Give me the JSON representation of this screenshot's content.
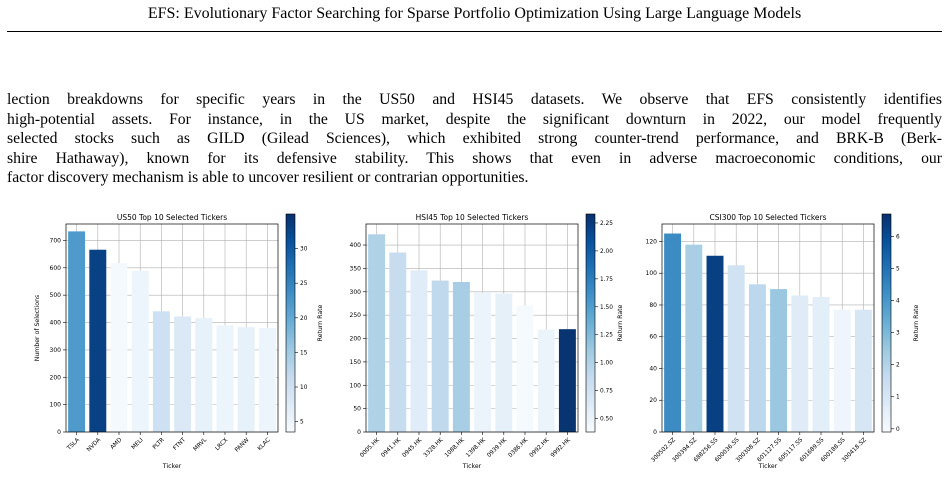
{
  "header": {
    "title": "EFS: Evolutionary Factor Searching for Sparse Portfolio Optimization Using Large Language Models"
  },
  "paragraph": {
    "lines": [
      "lection breakdowns for specific years in the US50 and HSI45 datasets. We observe that EFS consistently identifies",
      "high-potential assets. For instance, in the US market, despite the significant downturn in 2022, our model frequently",
      "selected stocks such as GILD (Gilead Sciences), which exhibited strong counter-trend performance, and BRK-B (Berk-",
      "shire Hathaway), known for its defensive stability. This shows that even in adverse macroeconomic conditions, our",
      "factor discovery mechanism is able to uncover resilient or contrarian opportunities."
    ]
  },
  "colors": {
    "cmap_light": "#f7fbff",
    "cmap_dark": "#08306b",
    "grid": "#b0b0b0"
  },
  "chart_data": [
    {
      "type": "bar",
      "title": "US50 Top 10 Selected Tickers",
      "xlabel": "Ticker",
      "ylabel": "Number of Selections",
      "colorbar_label": "Return Rate",
      "categories": [
        "TSLA",
        "NVDA",
        "AMD",
        "MELI",
        "PLTR",
        "FTNT",
        "MRVL",
        "LRCX",
        "PANW",
        "KLAC"
      ],
      "values": [
        733,
        666,
        617,
        589,
        441,
        422,
        416,
        390,
        383,
        380
      ],
      "color_values": [
        22,
        33,
        4,
        5,
        10,
        8,
        6,
        5,
        6,
        5
      ],
      "ylim": [
        0,
        760
      ],
      "yticks": [
        0,
        100,
        200,
        300,
        400,
        500,
        600,
        700
      ],
      "crange": [
        3.5,
        35
      ],
      "cticks": [
        5,
        10,
        15,
        20,
        25,
        30
      ],
      "grid": true
    },
    {
      "type": "bar",
      "title": "HSI45 Top 10 Selected Tickers",
      "xlabel": "Ticker",
      "ylabel": "",
      "colorbar_label": "Return Rate",
      "categories": [
        "0005.HK",
        "0941.HK",
        "0945.HK",
        "3328.HK",
        "1088.HK",
        "1398.HK",
        "0939.HK",
        "0386.HK",
        "0992.HK",
        "9992.HK"
      ],
      "values": [
        423,
        384,
        346,
        324,
        321,
        298,
        296,
        271,
        219,
        220
      ],
      "color_values": [
        1.0,
        0.85,
        0.6,
        0.9,
        1.05,
        0.5,
        0.55,
        0.4,
        0.5,
        2.3
      ],
      "ylim": [
        0,
        445
      ],
      "yticks": [
        0,
        50,
        100,
        150,
        200,
        250,
        300,
        350,
        400
      ],
      "crange": [
        0.38,
        2.33
      ],
      "cticks": [
        0.5,
        0.75,
        1.0,
        1.25,
        1.5,
        1.75,
        2.0,
        2.25
      ],
      "grid": true
    },
    {
      "type": "bar",
      "title": "CSI300 Top 10 Selected Tickers",
      "xlabel": "Ticker",
      "ylabel": "",
      "colorbar_label": "Return Rate",
      "categories": [
        "300502.SZ",
        "300394.SZ",
        "688256.SS",
        "600036.SS",
        "300308.SZ",
        "601127.SS",
        "605117.SS",
        "601689.SS",
        "600188.SS",
        "300418.SZ"
      ],
      "values": [
        125,
        118,
        111,
        105,
        93,
        90,
        86,
        85,
        77,
        77
      ],
      "color_values": [
        4.3,
        2.2,
        6.3,
        1.2,
        1.8,
        2.5,
        0.7,
        0.6,
        0.2,
        1.0
      ],
      "ylim": [
        0,
        131
      ],
      "yticks": [
        0,
        20,
        40,
        60,
        80,
        100,
        120
      ],
      "crange": [
        -0.1,
        6.7
      ],
      "cticks": [
        0,
        1,
        2,
        3,
        4,
        5,
        6
      ],
      "grid": true
    }
  ]
}
